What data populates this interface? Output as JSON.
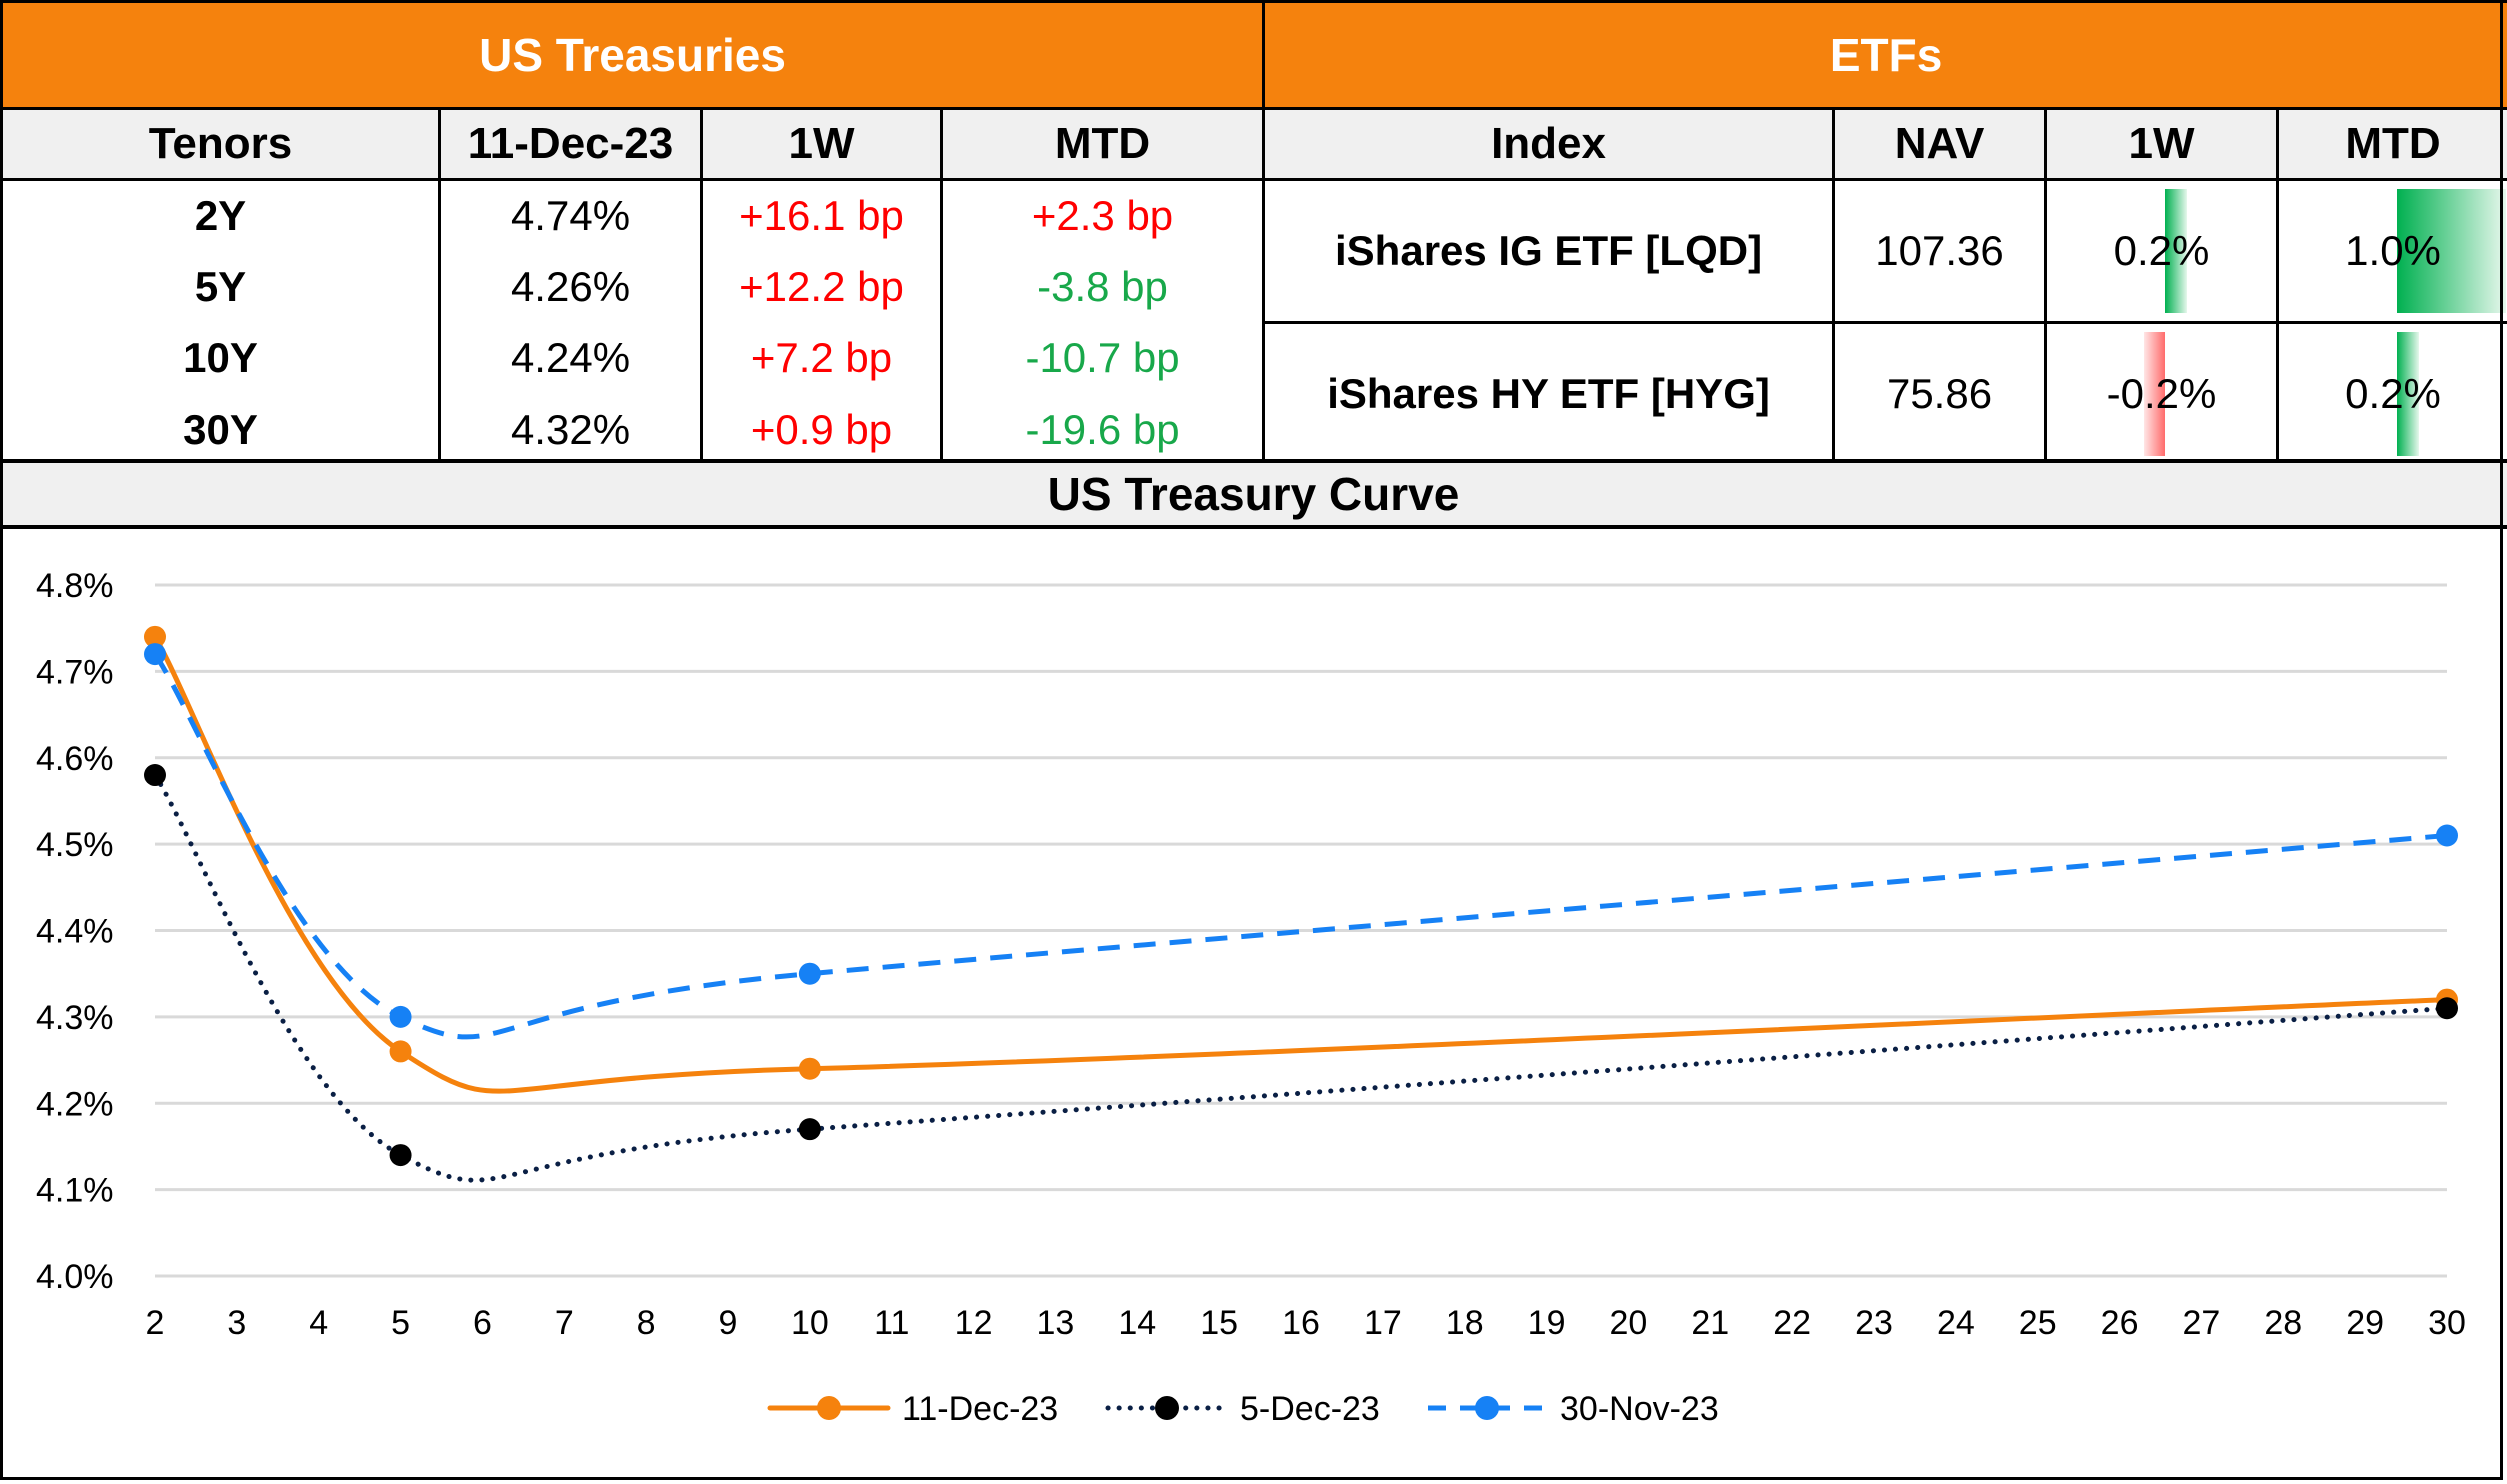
{
  "treasuries": {
    "title": "US Treasuries",
    "columns": [
      "Tenors",
      "11-Dec-23",
      "1W",
      "MTD"
    ],
    "rows": [
      {
        "tenor": "2Y",
        "yield": "4.74%",
        "w1": "+16.1 bp",
        "w1_dir": "up",
        "mtd": "+2.3 bp",
        "mtd_dir": "up"
      },
      {
        "tenor": "5Y",
        "yield": "4.26%",
        "w1": "+12.2 bp",
        "w1_dir": "up",
        "mtd": "-3.8 bp",
        "mtd_dir": "down"
      },
      {
        "tenor": "10Y",
        "yield": "4.24%",
        "w1": "+7.2 bp",
        "w1_dir": "up",
        "mtd": "-10.7 bp",
        "mtd_dir": "down"
      },
      {
        "tenor": "30Y",
        "yield": "4.32%",
        "w1": "+0.9 bp",
        "w1_dir": "up",
        "mtd": "-19.6 bp",
        "mtd_dir": "down"
      }
    ]
  },
  "etfs": {
    "title": "ETFs",
    "columns": [
      "Index",
      "NAV",
      "1W",
      "MTD"
    ],
    "rows": [
      {
        "index": "iShares IG ETF [LQD]",
        "nav": "107.36",
        "w1": "0.2%",
        "w1_value": 0.2,
        "mtd": "1.0%",
        "mtd_value": 1.0
      },
      {
        "index": "iShares HY ETF [HYG]",
        "nav": "75.86",
        "w1": "-0.2%",
        "w1_value": -0.2,
        "mtd": "0.2%",
        "mtd_value": 0.2
      }
    ]
  },
  "colors": {
    "header_orange": "#f5820d",
    "positive_red": "#ff0000",
    "negative_green": "#18a84a",
    "series_11dec": "#f5820d",
    "series_5dec": "#0a1f44",
    "series_30nov": "#1681f5"
  },
  "chart_data": {
    "type": "line",
    "title": "US Treasury Curve",
    "xlabel": "",
    "ylabel": "",
    "x_ticks": [
      2,
      3,
      4,
      5,
      6,
      7,
      8,
      9,
      10,
      11,
      12,
      13,
      14,
      15,
      16,
      17,
      18,
      19,
      20,
      21,
      22,
      23,
      24,
      25,
      26,
      27,
      28,
      29,
      30
    ],
    "xlim": [
      2,
      30
    ],
    "y_ticks": [
      "4.0%",
      "4.1%",
      "4.2%",
      "4.3%",
      "4.4%",
      "4.5%",
      "4.6%",
      "4.7%",
      "4.8%"
    ],
    "ylim": [
      4.0,
      4.8
    ],
    "grid": true,
    "legend_position": "bottom",
    "x": [
      2,
      5,
      10,
      30
    ],
    "series": [
      {
        "name": "11-Dec-23",
        "values": [
          4.74,
          4.26,
          4.24,
          4.32
        ],
        "style": "solid"
      },
      {
        "name": "5-Dec-23",
        "values": [
          4.58,
          4.14,
          4.17,
          4.31
        ],
        "style": "dotted"
      },
      {
        "name": "30-Nov-23",
        "values": [
          4.72,
          4.3,
          4.35,
          4.51
        ],
        "style": "dashed"
      }
    ]
  }
}
